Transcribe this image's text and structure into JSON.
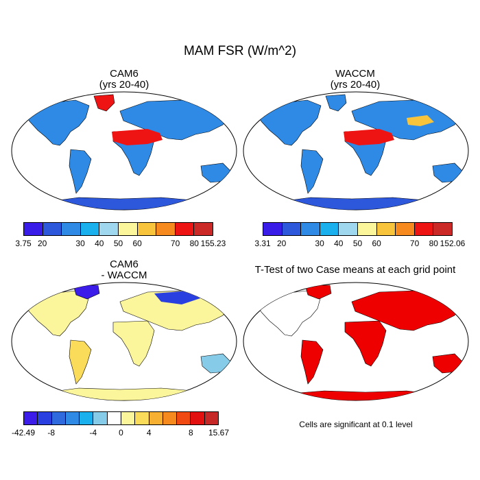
{
  "figure": {
    "title": "MAM FSR (W/m^2)"
  },
  "panels": [
    {
      "title_line1": "CAM6",
      "title_line2": "(yrs 20-40)",
      "colorbar": {
        "colors": [
          "#3a1ce8",
          "#2e58dc",
          "#2f8ae6",
          "#1ab0ee",
          "#9fd8ee",
          "#fbf59c",
          "#f8c43c",
          "#f68a1e",
          "#ee1414",
          "#cb2828"
        ],
        "labels": [
          "3.75",
          "20",
          "30",
          "40",
          "50",
          "60",
          "70",
          "80",
          "155.23"
        ]
      }
    },
    {
      "title_line1": "WACCM",
      "title_line2": "(yrs 20-40)",
      "colorbar": {
        "colors": [
          "#3a1ce8",
          "#2e58dc",
          "#2f8ae6",
          "#1ab0ee",
          "#9fd8ee",
          "#fbf59c",
          "#f8c43c",
          "#f68a1e",
          "#ee1414",
          "#cb2828"
        ],
        "labels": [
          "3.31",
          "20",
          "30",
          "40",
          "50",
          "60",
          "70",
          "80",
          "152.06"
        ]
      }
    },
    {
      "title_line1": "CAM6",
      "title_line2": "- WACCM",
      "colorbar": {
        "colors": [
          "#3c1ce8",
          "#2a3fe0",
          "#2f6ade",
          "#2f8ae6",
          "#1ab0ee",
          "#86cce8",
          "#ffffff",
          "#fbf59c",
          "#fbdc5a",
          "#f8b032",
          "#f68a1e",
          "#f04a12",
          "#e31010",
          "#c62828"
        ],
        "labels": [
          "-42.49",
          "-8",
          "-4",
          "0",
          "4",
          "8",
          "15.67"
        ]
      }
    },
    {
      "title_line1": "T-Test of two Case means at each grid point",
      "note": "Cells are significant at 0.1 level"
    }
  ]
}
